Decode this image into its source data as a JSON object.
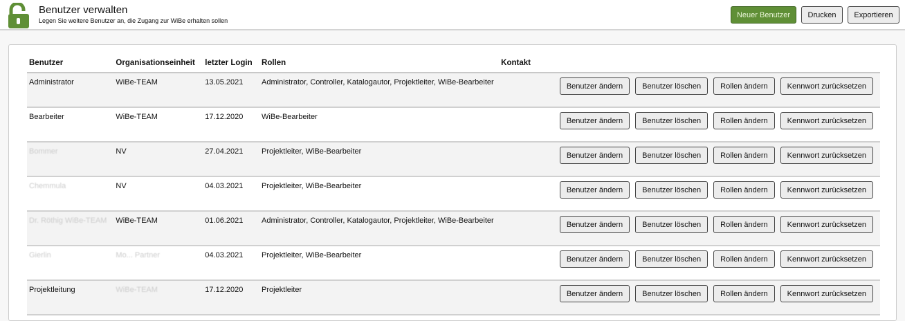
{
  "header": {
    "title": "Benutzer verwalten",
    "subtitle": "Legen Sie weitere Benutzer an, die Zugang zur WiBe erhalten sollen",
    "icon": "unlocked-padlock-icon",
    "accent": "#5f8f36",
    "buttons": {
      "new_user": "Neuer Benutzer",
      "print": "Drucken",
      "export": "Exportieren"
    }
  },
  "table": {
    "columns": [
      "Benutzer",
      "Organisationseinheit",
      "letzter Login",
      "Rollen",
      "Kontakt"
    ],
    "actions": [
      "Benutzer ändern",
      "Benutzer löschen",
      "Rollen ändern",
      "Kennwort zurücksetzen"
    ],
    "rows": [
      {
        "user": "Administrator",
        "org": "WiBe-TEAM",
        "login": "13.05.2021",
        "roles": "Administrator, Controller, Katalogautor, Projektleiter, WiBe-Bearbeiter",
        "contact": ""
      },
      {
        "user": "Bearbeiter",
        "org": "WiBe-TEAM",
        "login": "17.12.2020",
        "roles": "WiBe-Bearbeiter",
        "contact": ""
      },
      {
        "user": "Bommer",
        "org": "NV",
        "login": "27.04.2021",
        "roles": "Projektleiter, WiBe-Bearbeiter",
        "contact": ""
      },
      {
        "user": "Chemmula",
        "org": "NV",
        "login": "04.03.2021",
        "roles": "Projektleiter, WiBe-Bearbeiter",
        "contact": ""
      },
      {
        "user": "Dr. Röthig WiBe-TEAM",
        "org": "WiBe-TEAM",
        "login": "01.06.2021",
        "roles": "Administrator, Controller, Katalogautor, Projektleiter, WiBe-Bearbeiter",
        "contact": ""
      },
      {
        "user": "Gierlin",
        "org": "Mo... Partner",
        "login": "04.03.2021",
        "roles": "Projektleiter, WiBe-Bearbeiter",
        "contact": ""
      },
      {
        "user": "Projektleitung",
        "org": "WiBe-TEAM",
        "login": "17.12.2020",
        "roles": "Projektleiter",
        "contact": ""
      }
    ]
  }
}
